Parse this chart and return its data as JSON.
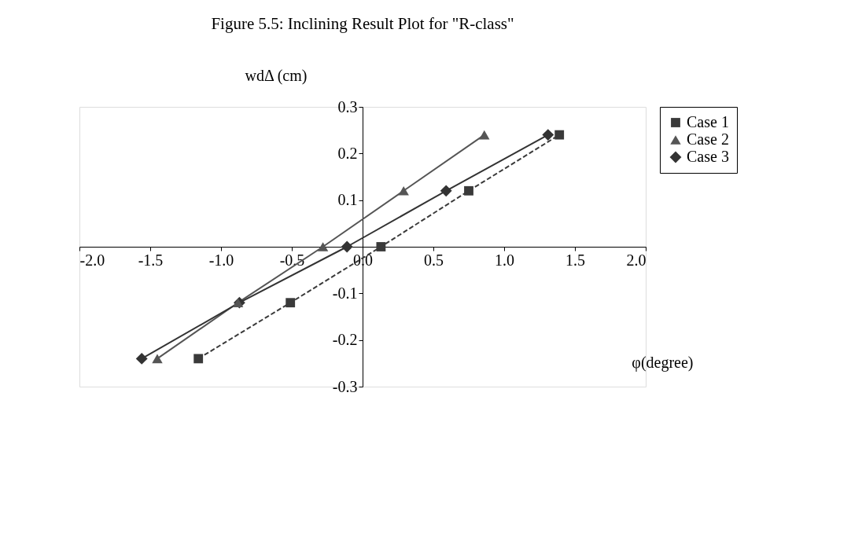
{
  "chart_data": {
    "type": "line",
    "title": "Figure 5.5: Inclining Result Plot for \"R-class\"",
    "xlabel": "φ(degree)",
    "ylabel": "wdΔ (cm)",
    "xlim": [
      -2.0,
      2.0
    ],
    "xticks": [
      {
        "value": -2,
        "label": "-2.0"
      },
      {
        "value": -1.5,
        "label": "-1.5"
      },
      {
        "value": -1,
        "label": "-1.0"
      },
      {
        "value": -0.5,
        "label": "-0.5"
      },
      {
        "value": 0,
        "label": "0.0"
      },
      {
        "value": 0.5,
        "label": "0.5"
      },
      {
        "value": 1,
        "label": "1.0"
      },
      {
        "value": 1.5,
        "label": "1.5"
      },
      {
        "value": 2,
        "label": "2.0"
      }
    ],
    "ylim": [
      -0.3,
      0.3
    ],
    "yticks": [
      {
        "value": -0.3,
        "label": "-0.3"
      },
      {
        "value": -0.2,
        "label": "-0.2"
      },
      {
        "value": -0.1,
        "label": "-0.1"
      },
      {
        "value": 0.1,
        "label": "0.1"
      },
      {
        "value": 0.2,
        "label": "0.2"
      },
      {
        "value": 0.3,
        "label": "0.3"
      }
    ],
    "grid": false,
    "legend": "right",
    "series": [
      {
        "name": "Case 1",
        "color": "#3a3a3a",
        "marker": "square",
        "line_style": "dashed",
        "x": [
          -1.16,
          -0.51,
          0.13,
          0.75,
          1.39
        ],
        "values": [
          -0.24,
          -0.12,
          0,
          0.12,
          0.24
        ]
      },
      {
        "name": "Case 2",
        "color": "#555555",
        "marker": "triangle",
        "line_style": "solid",
        "x": [
          -1.45,
          -0.88,
          -0.28,
          0.29,
          0.86
        ],
        "values": [
          -0.24,
          -0.12,
          0,
          0.12,
          0.24
        ]
      },
      {
        "name": "Case 3",
        "color": "#333333",
        "marker": "diamond",
        "line_style": "solid",
        "x": [
          -1.56,
          -0.87,
          -0.11,
          0.59,
          1.31
        ],
        "values": [
          -0.24,
          -0.12,
          0,
          0.12,
          0.24
        ]
      }
    ]
  }
}
